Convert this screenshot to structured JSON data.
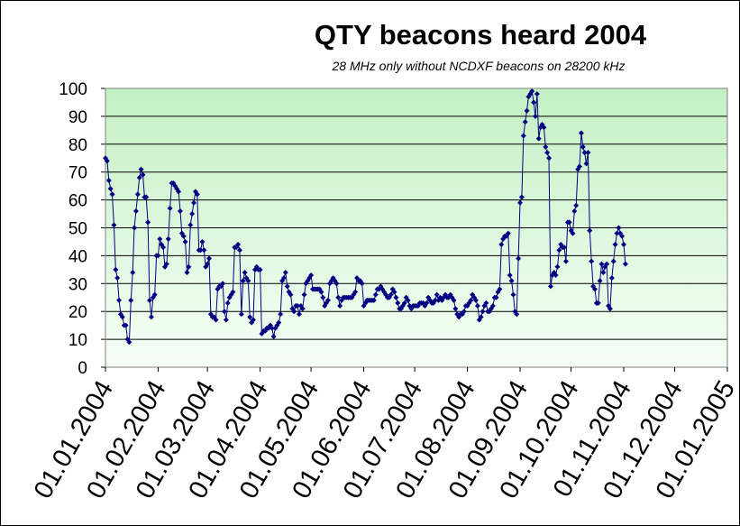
{
  "chart_data": {
    "type": "line",
    "title": "QTY beacons heard 2004",
    "subtitle": "28 MHz only without NCDXF beacons on 28200 kHz",
    "xlabel": "",
    "ylabel": "",
    "ylim": [
      0,
      100
    ],
    "yticks": [
      "0",
      "10",
      "20",
      "30",
      "40",
      "50",
      "60",
      "70",
      "80",
      "90",
      "100"
    ],
    "xticks": [
      "01.01.2004",
      "01.02.2004",
      "01.03.2004",
      "01.04.2004",
      "01.05.2004",
      "01.06.2004",
      "01.07.2004",
      "01.08.2004",
      "01.09.2004",
      "01.10.2004",
      "01.11.2004",
      "01.12.2004",
      "01.01.2005"
    ],
    "x_unit": "day of 2004 (0 = 01.01.2004, 366 = 01.01.2005)",
    "grid": true,
    "legend": "none",
    "colors": {
      "line": "#000080",
      "marker": "#000080",
      "plot_bg_top": "#c4f0c4",
      "plot_bg_bottom": "#f6fff6",
      "grid": "#000000"
    },
    "series": [
      {
        "values": [
          [
            0,
            75
          ],
          [
            1,
            74
          ],
          [
            2,
            67
          ],
          [
            3,
            64
          ],
          [
            4,
            62
          ],
          [
            5,
            51
          ],
          [
            6,
            35
          ],
          [
            7,
            32
          ],
          [
            8,
            24
          ],
          [
            9,
            19
          ],
          [
            10,
            18
          ],
          [
            11,
            15
          ],
          [
            12,
            15
          ],
          [
            13,
            10
          ],
          [
            14,
            9
          ],
          [
            15,
            24
          ],
          [
            16,
            34
          ],
          [
            17,
            50
          ],
          [
            18,
            56
          ],
          [
            19,
            62
          ],
          [
            20,
            68
          ],
          [
            21,
            71
          ],
          [
            22,
            69
          ],
          [
            23,
            61
          ],
          [
            24,
            61
          ],
          [
            25,
            52
          ],
          [
            26,
            24
          ],
          [
            27,
            18
          ],
          [
            28,
            25
          ],
          [
            29,
            26
          ],
          [
            30,
            40
          ],
          [
            31,
            40
          ],
          [
            32,
            46
          ],
          [
            33,
            44
          ],
          [
            34,
            43
          ],
          [
            35,
            36
          ],
          [
            36,
            37
          ],
          [
            37,
            46
          ],
          [
            38,
            57
          ],
          [
            39,
            66
          ],
          [
            40,
            66
          ],
          [
            41,
            65
          ],
          [
            42,
            64
          ],
          [
            43,
            63
          ],
          [
            44,
            56
          ],
          [
            45,
            48
          ],
          [
            46,
            47
          ],
          [
            47,
            45
          ],
          [
            48,
            34
          ],
          [
            49,
            36
          ],
          [
            50,
            51
          ],
          [
            51,
            55
          ],
          [
            52,
            59
          ],
          [
            53,
            63
          ],
          [
            54,
            62
          ],
          [
            55,
            42
          ],
          [
            56,
            42
          ],
          [
            57,
            45
          ],
          [
            58,
            42
          ],
          [
            59,
            36
          ],
          [
            60,
            37
          ],
          [
            61,
            39
          ],
          [
            62,
            19
          ],
          [
            63,
            18
          ],
          [
            64,
            18
          ],
          [
            65,
            17
          ],
          [
            66,
            28
          ],
          [
            67,
            29
          ],
          [
            68,
            29
          ],
          [
            69,
            30
          ],
          [
            70,
            20
          ],
          [
            71,
            17
          ],
          [
            72,
            23
          ],
          [
            73,
            25
          ],
          [
            74,
            26
          ],
          [
            75,
            27
          ],
          [
            76,
            43
          ],
          [
            77,
            43
          ],
          [
            78,
            44
          ],
          [
            79,
            42
          ],
          [
            80,
            19
          ],
          [
            81,
            31
          ],
          [
            82,
            34
          ],
          [
            83,
            32
          ],
          [
            84,
            31
          ],
          [
            85,
            18
          ],
          [
            86,
            16
          ],
          [
            87,
            17
          ],
          [
            88,
            35
          ],
          [
            89,
            36
          ],
          [
            90,
            35
          ],
          [
            91,
            35
          ],
          [
            92,
            12
          ],
          [
            93,
            13
          ],
          [
            94,
            13
          ],
          [
            95,
            14
          ],
          [
            96,
            14
          ],
          [
            97,
            15
          ],
          [
            98,
            14
          ],
          [
            99,
            11
          ],
          [
            100,
            14
          ],
          [
            101,
            15
          ],
          [
            102,
            16
          ],
          [
            103,
            19
          ],
          [
            104,
            31
          ],
          [
            105,
            32
          ],
          [
            106,
            34
          ],
          [
            107,
            29
          ],
          [
            108,
            27
          ],
          [
            109,
            26
          ],
          [
            110,
            21
          ],
          [
            111,
            20
          ],
          [
            112,
            22
          ],
          [
            113,
            22
          ],
          [
            114,
            19
          ],
          [
            115,
            22
          ],
          [
            116,
            21
          ],
          [
            117,
            26
          ],
          [
            118,
            30
          ],
          [
            119,
            31
          ],
          [
            120,
            32
          ],
          [
            121,
            33
          ],
          [
            122,
            28
          ],
          [
            123,
            28
          ],
          [
            124,
            28
          ],
          [
            125,
            28
          ],
          [
            126,
            28
          ],
          [
            127,
            27
          ],
          [
            128,
            25
          ],
          [
            129,
            22
          ],
          [
            130,
            23
          ],
          [
            131,
            24
          ],
          [
            132,
            30
          ],
          [
            133,
            31
          ],
          [
            134,
            32
          ],
          [
            135,
            31
          ],
          [
            136,
            30
          ],
          [
            137,
            25
          ],
          [
            138,
            22
          ],
          [
            139,
            24
          ],
          [
            140,
            25
          ],
          [
            141,
            25
          ],
          [
            142,
            25
          ],
          [
            143,
            25
          ],
          [
            144,
            25
          ],
          [
            145,
            25
          ],
          [
            146,
            26
          ],
          [
            147,
            27
          ],
          [
            148,
            32
          ],
          [
            149,
            31
          ],
          [
            150,
            31
          ],
          [
            151,
            30
          ],
          [
            152,
            22
          ],
          [
            153,
            23
          ],
          [
            154,
            24
          ],
          [
            155,
            24
          ],
          [
            156,
            24
          ],
          [
            157,
            24
          ],
          [
            158,
            24
          ],
          [
            159,
            26
          ],
          [
            160,
            28
          ],
          [
            161,
            28
          ],
          [
            162,
            29
          ],
          [
            163,
            28
          ],
          [
            164,
            27
          ],
          [
            165,
            26
          ],
          [
            166,
            25
          ],
          [
            167,
            25
          ],
          [
            168,
            26
          ],
          [
            169,
            28
          ],
          [
            170,
            27
          ],
          [
            171,
            25
          ],
          [
            172,
            23
          ],
          [
            173,
            21
          ],
          [
            174,
            21
          ],
          [
            175,
            22
          ],
          [
            176,
            23
          ],
          [
            177,
            25
          ],
          [
            178,
            24
          ],
          [
            179,
            22
          ],
          [
            180,
            21
          ],
          [
            181,
            22
          ],
          [
            182,
            22
          ],
          [
            183,
            22
          ],
          [
            184,
            22
          ],
          [
            185,
            23
          ],
          [
            186,
            23
          ],
          [
            187,
            23
          ],
          [
            188,
            22
          ],
          [
            189,
            23
          ],
          [
            190,
            25
          ],
          [
            191,
            24
          ],
          [
            192,
            23
          ],
          [
            193,
            23
          ],
          [
            194,
            24
          ],
          [
            195,
            26
          ],
          [
            196,
            24
          ],
          [
            197,
            25
          ],
          [
            198,
            24
          ],
          [
            199,
            25
          ],
          [
            200,
            26
          ],
          [
            201,
            25
          ],
          [
            202,
            25
          ],
          [
            203,
            26
          ],
          [
            204,
            25
          ],
          [
            205,
            24
          ],
          [
            206,
            21
          ],
          [
            207,
            19
          ],
          [
            208,
            18
          ],
          [
            209,
            19
          ],
          [
            210,
            19
          ],
          [
            211,
            20
          ],
          [
            212,
            22
          ],
          [
            213,
            22
          ],
          [
            214,
            23
          ],
          [
            215,
            24
          ],
          [
            216,
            26
          ],
          [
            217,
            25
          ],
          [
            218,
            24
          ],
          [
            219,
            22
          ],
          [
            220,
            17
          ],
          [
            221,
            18
          ],
          [
            222,
            20
          ],
          [
            223,
            22
          ],
          [
            224,
            23
          ],
          [
            225,
            20
          ],
          [
            226,
            20
          ],
          [
            227,
            21
          ],
          [
            228,
            22
          ],
          [
            229,
            25
          ],
          [
            230,
            25
          ],
          [
            231,
            27
          ],
          [
            232,
            28
          ],
          [
            233,
            44
          ],
          [
            234,
            46
          ],
          [
            235,
            47
          ],
          [
            236,
            47
          ],
          [
            237,
            48
          ],
          [
            238,
            33
          ],
          [
            239,
            31
          ],
          [
            240,
            26
          ],
          [
            241,
            20
          ],
          [
            242,
            19
          ],
          [
            243,
            39
          ],
          [
            244,
            59
          ],
          [
            245,
            61
          ],
          [
            246,
            83
          ],
          [
            247,
            88
          ],
          [
            248,
            92
          ],
          [
            249,
            97
          ],
          [
            250,
            98
          ],
          [
            251,
            99
          ],
          [
            252,
            95
          ],
          [
            253,
            90
          ],
          [
            254,
            98
          ],
          [
            255,
            82
          ],
          [
            256,
            86
          ],
          [
            257,
            87
          ],
          [
            258,
            86
          ],
          [
            259,
            79
          ],
          [
            260,
            77
          ],
          [
            261,
            75
          ],
          [
            262,
            29
          ],
          [
            263,
            33
          ],
          [
            264,
            34
          ],
          [
            265,
            33
          ],
          [
            266,
            36
          ],
          [
            267,
            42
          ],
          [
            268,
            44
          ],
          [
            269,
            43
          ],
          [
            270,
            43
          ],
          [
            271,
            38
          ],
          [
            272,
            52
          ],
          [
            273,
            52
          ],
          [
            274,
            49
          ],
          [
            275,
            48
          ],
          [
            276,
            56
          ],
          [
            277,
            58
          ],
          [
            278,
            71
          ],
          [
            279,
            72
          ],
          [
            280,
            84
          ],
          [
            281,
            79
          ],
          [
            282,
            77
          ],
          [
            283,
            73
          ],
          [
            284,
            77
          ],
          [
            285,
            49
          ],
          [
            286,
            38
          ],
          [
            287,
            29
          ],
          [
            288,
            28
          ],
          [
            289,
            23
          ],
          [
            290,
            23
          ],
          [
            291,
            31
          ],
          [
            292,
            37
          ],
          [
            293,
            34
          ],
          [
            294,
            36
          ],
          [
            295,
            37
          ],
          [
            296,
            22
          ],
          [
            297,
            21
          ],
          [
            298,
            32
          ],
          [
            299,
            38
          ],
          [
            300,
            44
          ],
          [
            301,
            48
          ],
          [
            302,
            50
          ],
          [
            303,
            48
          ],
          [
            304,
            47
          ],
          [
            305,
            44
          ],
          [
            306,
            37
          ]
        ]
      }
    ]
  }
}
